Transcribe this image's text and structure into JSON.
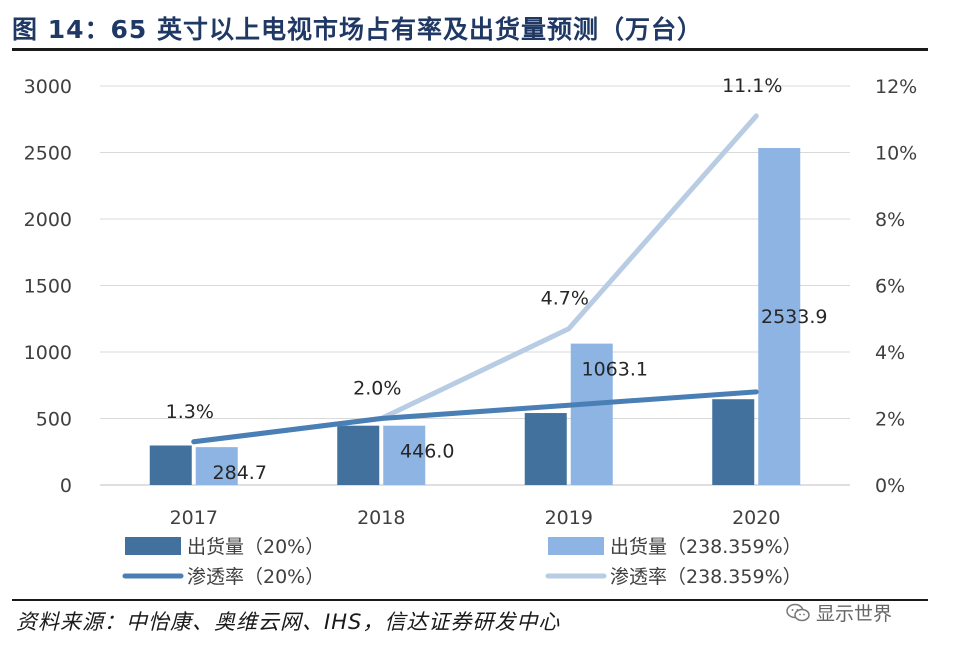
{
  "title": "图 14：65 英寸以上电视市场占有率及出货量预测（万台）",
  "source": "资料来源：中怡康、奥维云网、IHS，信达证券研发中心",
  "watermark": "显示世界",
  "colors": {
    "shipment_20": "#41719c",
    "shipment_238": "#8eb4e3",
    "penetration_20": "#4a7fb5",
    "penetration_238": "#b8cce4",
    "title": "#1f3864"
  },
  "chart_data": {
    "type": "bar",
    "categories": [
      "2017",
      "2018",
      "2019",
      "2020"
    ],
    "y_left": {
      "ticks": [
        "0",
        "500",
        "1000",
        "1500",
        "2000",
        "2500",
        "3000"
      ],
      "min": 0,
      "max": 3000
    },
    "y_right": {
      "ticks": [
        "0%",
        "2%",
        "4%",
        "6%",
        "8%",
        "10%",
        "12%"
      ],
      "min": 0,
      "max": 0.12
    },
    "grid": "horizontal",
    "legend_position": "bottom",
    "series": [
      {
        "name": "出货量（20%）",
        "kind": "bar",
        "axis": "left",
        "values": [
          297,
          446,
          541,
          645
        ]
      },
      {
        "name": "出货量（238.359%）",
        "kind": "bar",
        "axis": "left",
        "values": [
          284.7,
          446.0,
          1063.1,
          2533.9
        ],
        "labels": [
          "284.7",
          "446.0",
          "1063.1",
          "2533.9"
        ]
      },
      {
        "name": "渗透率（20%）",
        "kind": "line",
        "axis": "right",
        "values": [
          0.013,
          0.02,
          0.024,
          0.028
        ]
      },
      {
        "name": "渗透率（238.359%）",
        "kind": "line",
        "axis": "right",
        "values": [
          0.013,
          0.02,
          0.047,
          0.111
        ],
        "labels": [
          "1.3%",
          "2.0%",
          "4.7%",
          "11.1%"
        ]
      }
    ]
  }
}
